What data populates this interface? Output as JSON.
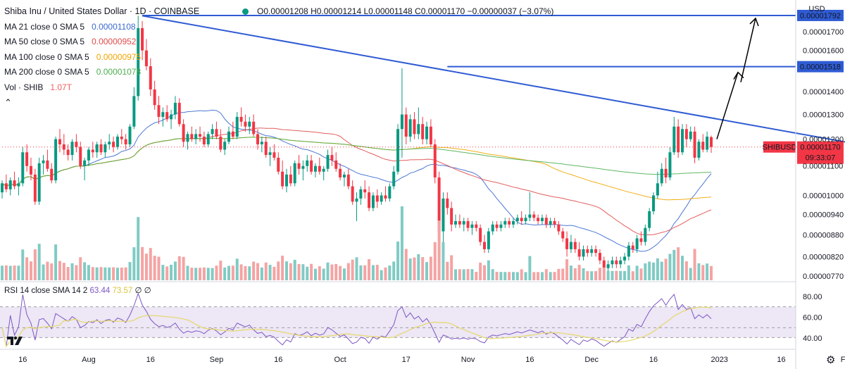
{
  "header": {
    "title": "Shiba Inu / United States Dollar · 1D · COINBASE",
    "open": "O0.00001208",
    "high": "H0.00001214",
    "low": "L0.00001148",
    "close": "C0.00001170",
    "change": "−0.00000037 (−3.07%)",
    "status_color": "#089981",
    "down_color": "#f23645"
  },
  "indicators": [
    {
      "label": "MA 21 close 0 SMA 5",
      "value": "0.00001108",
      "color": "#3a69d0"
    },
    {
      "label": "MA 50 close 0 SMA 5",
      "value": "0.00000952",
      "color": "#e04b4b"
    },
    {
      "label": "MA 100 close 0 SMA 5",
      "value": "0.00000975",
      "color": "#f0a500"
    },
    {
      "label": "MA 200 close 0 SMA 5",
      "value": "0.00001078",
      "color": "#4caf50"
    },
    {
      "label": "Vol · SHIB",
      "value": "1.07T",
      "color": "#f06060"
    }
  ],
  "rsi_legend": {
    "label": "RSI 14 close SMA 14 2",
    "v1": "63.44",
    "v2": "73.57",
    "v3": "∅ ∅"
  },
  "price_axis": {
    "currency": "USD",
    "ticks": [
      "0.00001700",
      "0.00001600",
      "0.00001400",
      "0.00001300",
      "0.00001200",
      "0.00001100",
      "0.00001000",
      "0.00000940",
      "0.00000880",
      "0.00000820",
      "0.00000770"
    ],
    "level_labels": [
      "0.00001792",
      "0.00001518"
    ],
    "symbol_tag": "SHIBUSD",
    "last_price": "0.00001170",
    "countdown": "09:33:07",
    "rsi_ticks": [
      "80.00",
      "60.00",
      "40.00"
    ]
  },
  "date_axis": [
    "16",
    "Aug",
    "16",
    "Sep",
    "16",
    "Oct",
    "17",
    "Nov",
    "16",
    "Dec",
    "16",
    "2023",
    "16",
    "Feb"
  ],
  "chart_data": {
    "type": "candlestick",
    "symbol": "SHIBUSD",
    "interval": "1D",
    "x_range": [
      "2022-07-11",
      "2023-01-28"
    ],
    "scale": "log",
    "ylim": [
      7.7e-06,
      1.85e-05
    ],
    "candles_ohlc": [
      [
        1.01e-05,
        1.05e-05,
        9.9e-06,
        1.04e-05
      ],
      [
        1.04e-05,
        1.07e-05,
        1.01e-05,
        1.02e-05
      ],
      [
        1.02e-05,
        1.06e-05,
        1e-05,
        1.05e-05
      ],
      [
        1.05e-05,
        1.08e-05,
        1.02e-05,
        1.03e-05
      ],
      [
        1.03e-05,
        1.06e-05,
        1e-05,
        1.04e-05
      ],
      [
        1.04e-05,
        1.17e-05,
        1.03e-05,
        1.15e-05
      ],
      [
        1.15e-05,
        1.18e-05,
        1.08e-05,
        1.1e-05
      ],
      [
        1.1e-05,
        1.13e-05,
        1.05e-05,
        1.07e-05
      ],
      [
        1.07e-05,
        1.09e-05,
        9.7e-06,
        9.8e-06
      ],
      [
        9.8e-06,
        1.13e-05,
        9.7e-06,
        1.11e-05
      ],
      [
        1.11e-05,
        1.14e-05,
        1.07e-05,
        1.12e-05
      ],
      [
        1.12e-05,
        1.16e-05,
        1.08e-05,
        1.09e-05
      ],
      [
        1.09e-05,
        1.11e-05,
        1.04e-05,
        1.05e-05
      ],
      [
        1.05e-05,
        1.21e-05,
        1.04e-05,
        1.2e-05
      ],
      [
        1.2e-05,
        1.24e-05,
        1.15e-05,
        1.18e-05
      ],
      [
        1.18e-05,
        1.22e-05,
        1.14e-05,
        1.16e-05
      ],
      [
        1.16e-05,
        1.18e-05,
        1.12e-05,
        1.14e-05
      ],
      [
        1.14e-05,
        1.2e-05,
        1.12e-05,
        1.19e-05
      ],
      [
        1.19e-05,
        1.22e-05,
        1.15e-05,
        1.17e-05
      ],
      [
        1.17e-05,
        1.19e-05,
        1.09e-05,
        1.1e-05
      ],
      [
        1.1e-05,
        1.13e-05,
        1.05e-05,
        1.12e-05
      ],
      [
        1.12e-05,
        1.17e-05,
        1.1e-05,
        1.16e-05
      ],
      [
        1.16e-05,
        1.19e-05,
        1.13e-05,
        1.15e-05
      ],
      [
        1.15e-05,
        1.19e-05,
        1.13e-05,
        1.18e-05
      ],
      [
        1.18e-05,
        1.2e-05,
        1.14e-05,
        1.15e-05
      ],
      [
        1.15e-05,
        1.19e-05,
        1.13e-05,
        1.18e-05
      ],
      [
        1.18e-05,
        1.22e-05,
        1.16e-05,
        1.19e-05
      ],
      [
        1.19e-05,
        1.21e-05,
        1.15e-05,
        1.17e-05
      ],
      [
        1.17e-05,
        1.22e-05,
        1.16e-05,
        1.21e-05
      ],
      [
        1.21e-05,
        1.24e-05,
        1.18e-05,
        1.2e-05
      ],
      [
        1.2e-05,
        1.22e-05,
        1.16e-05,
        1.18e-05
      ],
      [
        1.18e-05,
        1.26e-05,
        1.17e-05,
        1.25e-05
      ],
      [
        1.25e-05,
        1.42e-05,
        1.24e-05,
        1.38e-05
      ],
      [
        1.38e-05,
        1.79e-05,
        1.36e-05,
        1.72e-05
      ],
      [
        1.72e-05,
        1.76e-05,
        1.55e-05,
        1.6e-05
      ],
      [
        1.6e-05,
        1.66e-05,
        1.5e-05,
        1.52e-05
      ],
      [
        1.52e-05,
        1.56e-05,
        1.38e-05,
        1.41e-05
      ],
      [
        1.41e-05,
        1.45e-05,
        1.32e-05,
        1.34e-05
      ],
      [
        1.34e-05,
        1.38e-05,
        1.26e-05,
        1.29e-05
      ],
      [
        1.29e-05,
        1.33e-05,
        1.25e-05,
        1.31e-05
      ],
      [
        1.31e-05,
        1.34e-05,
        1.27e-05,
        1.28e-05
      ],
      [
        1.28e-05,
        1.32e-05,
        1.24e-05,
        1.3e-05
      ],
      [
        1.3e-05,
        1.38e-05,
        1.28e-05,
        1.35e-05
      ],
      [
        1.35e-05,
        1.37e-05,
        1.25e-05,
        1.26e-05
      ],
      [
        1.26e-05,
        1.28e-05,
        1.17e-05,
        1.19e-05
      ],
      [
        1.19e-05,
        1.23e-05,
        1.16e-05,
        1.22e-05
      ],
      [
        1.22e-05,
        1.25e-05,
        1.19e-05,
        1.2e-05
      ],
      [
        1.2e-05,
        1.24e-05,
        1.18e-05,
        1.22e-05
      ],
      [
        1.22e-05,
        1.25e-05,
        1.19e-05,
        1.21e-05
      ],
      [
        1.21e-05,
        1.23e-05,
        1.17e-05,
        1.18e-05
      ],
      [
        1.18e-05,
        1.23e-05,
        1.17e-05,
        1.22e-05
      ],
      [
        1.22e-05,
        1.26e-05,
        1.2e-05,
        1.24e-05
      ],
      [
        1.24e-05,
        1.27e-05,
        1.2e-05,
        1.21e-05
      ],
      [
        1.21e-05,
        1.24e-05,
        1.15e-05,
        1.16e-05
      ],
      [
        1.16e-05,
        1.2e-05,
        1.14e-05,
        1.19e-05
      ],
      [
        1.19e-05,
        1.25e-05,
        1.18e-05,
        1.23e-05
      ],
      [
        1.23e-05,
        1.27e-05,
        1.2e-05,
        1.21e-05
      ],
      [
        1.21e-05,
        1.31e-05,
        1.2e-05,
        1.29e-05
      ],
      [
        1.29e-05,
        1.33e-05,
        1.25e-05,
        1.27e-05
      ],
      [
        1.27e-05,
        1.3e-05,
        1.23e-05,
        1.25e-05
      ],
      [
        1.25e-05,
        1.29e-05,
        1.22e-05,
        1.27e-05
      ],
      [
        1.27e-05,
        1.3e-05,
        1.21e-05,
        1.22e-05
      ],
      [
        1.22e-05,
        1.24e-05,
        1.16e-05,
        1.18e-05
      ],
      [
        1.18e-05,
        1.21e-05,
        1.15e-05,
        1.19e-05
      ],
      [
        1.19e-05,
        1.21e-05,
        1.13e-05,
        1.14e-05
      ],
      [
        1.14e-05,
        1.17e-05,
        1.1e-05,
        1.15e-05
      ],
      [
        1.15e-05,
        1.18e-05,
        1.12e-05,
        1.13e-05
      ],
      [
        1.13e-05,
        1.15e-05,
        1.07e-05,
        1.08e-05
      ],
      [
        1.08e-05,
        1.12e-05,
        1.02e-05,
        1.03e-05
      ],
      [
        1.03e-05,
        1.09e-05,
        1.01e-05,
        1.07e-05
      ],
      [
        1.07e-05,
        1.1e-05,
        1.03e-05,
        1.04e-05
      ],
      [
        1.04e-05,
        1.12e-05,
        1.03e-05,
        1.11e-05
      ],
      [
        1.11e-05,
        1.14e-05,
        1.07e-05,
        1.09e-05
      ],
      [
        1.09e-05,
        1.12e-05,
        1.05e-05,
        1.1e-05
      ],
      [
        1.1e-05,
        1.14e-05,
        1.08e-05,
        1.12e-05
      ],
      [
        1.12e-05,
        1.14e-05,
        1.07e-05,
        1.08e-05
      ],
      [
        1.08e-05,
        1.11e-05,
        1.06e-05,
        1.1e-05
      ],
      [
        1.1e-05,
        1.13e-05,
        1.07e-05,
        1.08e-05
      ],
      [
        1.08e-05,
        1.1e-05,
        1.05e-05,
        1.09e-05
      ],
      [
        1.09e-05,
        1.16e-05,
        1.08e-05,
        1.14e-05
      ],
      [
        1.14e-05,
        1.17e-05,
        1.1e-05,
        1.12e-05
      ],
      [
        1.12e-05,
        1.15e-05,
        1.08e-05,
        1.09e-05
      ],
      [
        1.09e-05,
        1.11e-05,
        1.05e-05,
        1.06e-05
      ],
      [
        1.06e-05,
        1.08e-05,
        1.03e-05,
        1.07e-05
      ],
      [
        1.07e-05,
        1.09e-05,
        1.02e-05,
        1.03e-05
      ],
      [
        1.03e-05,
        1.05e-05,
        9.7e-06,
        9.8e-06
      ],
      [
        9.8e-06,
        1.01e-05,
        9.2e-06,
        9.9e-06
      ],
      [
        9.9e-06,
        1.03e-05,
        9.7e-06,
        1.02e-05
      ],
      [
        1.02e-05,
        1.05e-05,
        9.9e-06,
        1.01e-05
      ],
      [
        1.01e-05,
        1.03e-05,
        9.5e-06,
        9.6e-06
      ],
      [
        9.6e-06,
        1.01e-05,
        9.5e-06,
        1e-05
      ],
      [
        1e-05,
        1.02e-05,
        9.6e-06,
        9.8e-06
      ],
      [
        9.8e-06,
        1.01e-05,
        9.7e-06,
        1e-05
      ],
      [
        1e-05,
        1.03e-05,
        9.8e-06,
        9.9e-06
      ],
      [
        9.9e-06,
        1.04e-05,
        9.8e-06,
        1.03e-05
      ],
      [
        1.03e-05,
        1.1e-05,
        1.02e-05,
        1.08e-05
      ],
      [
        1.08e-05,
        1.26e-05,
        1.07e-05,
        1.24e-05
      ],
      [
        1.24e-05,
        1.51e-05,
        1.13e-05,
        1.3e-05
      ],
      [
        1.3e-05,
        1.33e-05,
        1.18e-05,
        1.21e-05
      ],
      [
        1.21e-05,
        1.3e-05,
        1.19e-05,
        1.28e-05
      ],
      [
        1.28e-05,
        1.31e-05,
        1.2e-05,
        1.22e-05
      ],
      [
        1.22e-05,
        1.33e-05,
        1.2e-05,
        1.26e-05
      ],
      [
        1.26e-05,
        1.29e-05,
        1.18e-05,
        1.2e-05
      ],
      [
        1.2e-05,
        1.27e-05,
        1.18e-05,
        1.25e-05
      ],
      [
        1.25e-05,
        1.28e-05,
        1.17e-05,
        1.18e-05
      ],
      [
        1.18e-05,
        1.2e-05,
        1.04e-05,
        1.06e-05
      ],
      [
        1.06e-05,
        1.08e-05,
        8.7e-06,
        8.9e-06
      ],
      [
        8.9e-06,
        1.01e-05,
        8.6e-06,
        9.9e-06
      ],
      [
        9.9e-06,
        1.01e-05,
        9.4e-06,
        9.6e-06
      ],
      [
        9.6e-06,
        9.8e-06,
        8.9e-06,
        9.1e-06
      ],
      [
        9.1e-06,
        9.4e-06,
        9e-06,
        9.2e-06
      ],
      [
        9.2e-06,
        9.4e-06,
        9e-06,
        9.1e-06
      ],
      [
        9.1e-06,
        9.3e-06,
        8.9e-06,
        9.2e-06
      ],
      [
        9.2e-06,
        9.3e-06,
        8.9e-06,
        9e-06
      ],
      [
        9e-06,
        9.2e-06,
        8.8e-06,
        9.1e-06
      ],
      [
        9.1e-06,
        9.2e-06,
        8.9e-06,
        9e-06
      ],
      [
        9e-06,
        9.1e-06,
        8.5e-06,
        8.6e-06
      ],
      [
        8.6e-06,
        8.8e-06,
        8.3e-06,
        8.4e-06
      ],
      [
        8.4e-06,
        9e-06,
        8.3e-06,
        8.9e-06
      ],
      [
        8.9e-06,
        9.2e-06,
        8.8e-06,
        9.1e-06
      ],
      [
        9.1e-06,
        9.2e-06,
        8.9e-06,
        9e-06
      ],
      [
        9e-06,
        9.2e-06,
        8.9e-06,
        9.1e-06
      ],
      [
        9.1e-06,
        9.3e-06,
        9e-06,
        9.2e-06
      ],
      [
        9.2e-06,
        9.3e-06,
        9e-06,
        9.1e-06
      ],
      [
        9.1e-06,
        9.3e-06,
        9e-06,
        9.2e-06
      ],
      [
        9.2e-06,
        9.4e-06,
        9.1e-06,
        9.3e-06
      ],
      [
        9.3e-06,
        9.5e-06,
        9.1e-06,
        9.2e-06
      ],
      [
        9.2e-06,
        9.4e-06,
        9.1e-06,
        9.3e-06
      ],
      [
        9.3e-06,
        1.01e-05,
        9.2e-06,
        9.4e-06
      ],
      [
        9.4e-06,
        9.5e-06,
        9.2e-06,
        9.3e-06
      ],
      [
        9.3e-06,
        9.4e-06,
        9.1e-06,
        9.2e-06
      ],
      [
        9.2e-06,
        9.4e-06,
        9.1e-06,
        9.3e-06
      ],
      [
        9.3e-06,
        9.4e-06,
        9e-06,
        9.1e-06
      ],
      [
        9.1e-06,
        9.3e-06,
        9e-06,
        9.2e-06
      ],
      [
        9.2e-06,
        9.3e-06,
        9e-06,
        9.1e-06
      ],
      [
        9.1e-06,
        9.2e-06,
        8.8e-06,
        8.9e-06
      ],
      [
        8.9e-06,
        9e-06,
        8.6e-06,
        8.7e-06
      ],
      [
        8.7e-06,
        8.9e-06,
        8.2e-06,
        8.4e-06
      ],
      [
        8.4e-06,
        8.8e-06,
        8.3e-06,
        8.6e-06
      ],
      [
        8.6e-06,
        8.7e-06,
        8.3e-06,
        8.4e-06
      ],
      [
        8.4e-06,
        8.6e-06,
        8.1e-06,
        8.2e-06
      ],
      [
        8.2e-06,
        8.5e-06,
        8.1e-06,
        8.4e-06
      ],
      [
        8.4e-06,
        8.5e-06,
        8.2e-06,
        8.3e-06
      ],
      [
        8.3e-06,
        8.5e-06,
        8.2e-06,
        8.4e-06
      ],
      [
        8.4e-06,
        8.5e-06,
        8.2e-06,
        8.3e-06
      ],
      [
        8.3e-06,
        8.4e-06,
        8e-06,
        8.1e-06
      ],
      [
        8.1e-06,
        8.2e-06,
        7.8e-06,
        7.9e-06
      ],
      [
        7.9e-06,
        8.1e-06,
        7.8e-06,
        8e-06
      ],
      [
        8e-06,
        8.2e-06,
        7.9e-06,
        8.1e-06
      ],
      [
        8.1e-06,
        8.2e-06,
        7.9e-06,
        8e-06
      ],
      [
        8e-06,
        8.2e-06,
        7.9e-06,
        8.1e-06
      ],
      [
        8.1e-06,
        8.3e-06,
        8e-06,
        8.2e-06
      ],
      [
        8.2e-06,
        8.6e-06,
        8.1e-06,
        8.5e-06
      ],
      [
        8.5e-06,
        8.6e-06,
        8.3e-06,
        8.4e-06
      ],
      [
        8.4e-06,
        8.8e-06,
        8.3e-06,
        8.7e-06
      ],
      [
        8.7e-06,
        8.9e-06,
        8.5e-06,
        8.6e-06
      ],
      [
        8.6e-06,
        9.1e-06,
        8.5e-06,
        9e-06
      ],
      [
        9e-06,
        9.6e-06,
        8.9e-06,
        9.5e-06
      ],
      [
        9.5e-06,
        1.01e-05,
        9.4e-06,
        1e-05
      ],
      [
        1e-05,
        1.08e-05,
        9.9e-06,
        1.04e-05
      ],
      [
        1.04e-05,
        1.11e-05,
        1.03e-05,
        1.09e-05
      ],
      [
        1.09e-05,
        1.13e-05,
        1.04e-05,
        1.06e-05
      ],
      [
        1.06e-05,
        1.17e-05,
        1.05e-05,
        1.15e-05
      ],
      [
        1.15e-05,
        1.29e-05,
        1.14e-05,
        1.25e-05
      ],
      [
        1.25e-05,
        1.28e-05,
        1.13e-05,
        1.15e-05
      ],
      [
        1.15e-05,
        1.26e-05,
        1.14e-05,
        1.24e-05
      ],
      [
        1.24e-05,
        1.26e-05,
        1.17e-05,
        1.2e-05
      ],
      [
        1.2e-05,
        1.25e-05,
        1.19e-05,
        1.23e-05
      ],
      [
        1.23e-05,
        1.25e-05,
        1.11e-05,
        1.13e-05
      ],
      [
        1.13e-05,
        1.2e-05,
        1.12e-05,
        1.19e-05
      ],
      [
        1.19e-05,
        1.22e-05,
        1.15e-05,
        1.16e-05
      ],
      [
        1.16e-05,
        1.23e-05,
        1.15e-05,
        1.21e-05
      ],
      [
        1.208e-05,
        1.214e-05,
        1.148e-05,
        1.17e-05
      ]
    ],
    "levels": [
      {
        "label": "0.00001792",
        "value": 1.792e-05,
        "color": "#2f5bd3"
      },
      {
        "label": "0.00001518",
        "value": 1.518e-05,
        "color": "#2f5bd3"
      }
    ],
    "trendline": {
      "from": {
        "date": "2022-08-14",
        "price": 1.79e-05
      },
      "to": {
        "date": "2023-02-02",
        "price": 1.185e-05
      },
      "color": "#2f5bd3"
    },
    "projection_arrows": {
      "color": "#000000"
    },
    "rsi": {
      "ylim": [
        30,
        90
      ],
      "bands": [
        70,
        50
      ],
      "last": 63.44,
      "sma_last": 73.57,
      "line_color": "#7e57c2",
      "sma_color": "#e6d86a",
      "band_fill": "#ede7f6"
    },
    "volume": {
      "up_color": "#80cbc4",
      "down_color": "#f5a3a3"
    },
    "legend_position": "top-left"
  }
}
